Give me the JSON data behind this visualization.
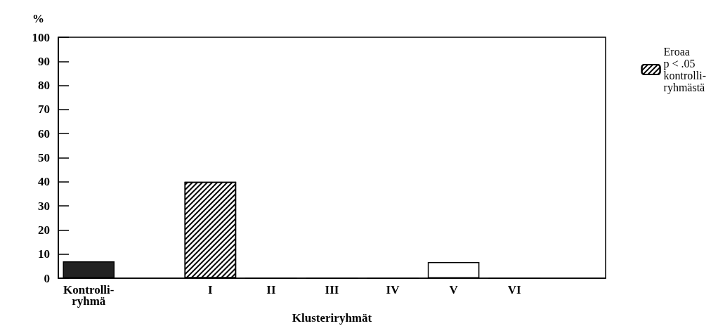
{
  "chart_data": {
    "type": "bar",
    "stacked": true,
    "ylabel": "%",
    "xlabel": "Klusteriryhmät",
    "categories": [
      "Kontrolli-\nryhmä",
      null,
      "I",
      "II",
      "III",
      "IV",
      "V",
      "VI",
      null
    ],
    "series": [
      {
        "colors": [
          "#222222",
          null,
          null,
          "#ffffff",
          "#ffffff",
          "#ffffff",
          "#ffffff",
          "#ffffff",
          null
        ],
        "values": [
          7,
          null,
          null,
          0,
          0,
          0,
          6.7,
          0,
          null
        ]
      },
      {
        "name": "Eroaa\np < .05\nkontrolli-\nryhmästä",
        "color": "#ffffff",
        "values": [
          null,
          null,
          40,
          null,
          null,
          null,
          null,
          null,
          null
        ]
      }
    ],
    "ylim": [
      0,
      100
    ],
    "yticks": [
      0,
      10,
      20,
      30,
      40,
      50,
      60,
      70,
      80,
      90,
      100
    ],
    "grid": false,
    "legend": "top right"
  }
}
